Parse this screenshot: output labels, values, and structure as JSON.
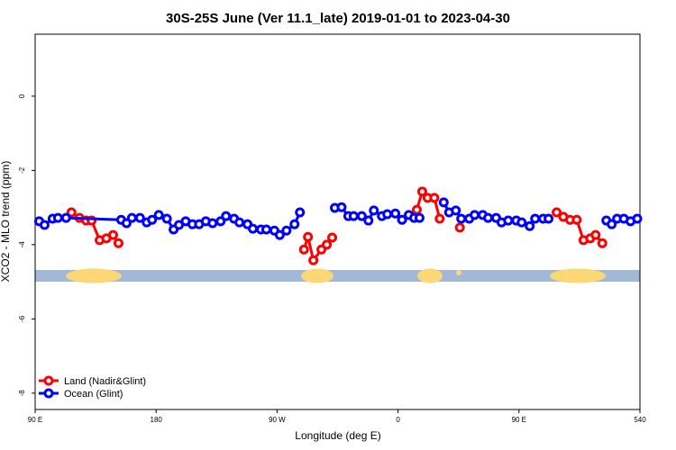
{
  "chart_data": {
    "type": "line",
    "title": "30S-25S June (Ver 11.1_late)   2019-01-01 to 2023-04-30",
    "x_label": "Longitude (deg E)",
    "y_label": "XCO2 - MLO trend (ppm)",
    "xlim": [
      90,
      540
    ],
    "xticks": [
      {
        "value": 90,
        "label": "90 E"
      },
      180,
      {
        "value": 270,
        "label": "90 W"
      },
      {
        "value": 360,
        "label": "0"
      },
      {
        "value": 450,
        "label": "90 E"
      },
      540
    ],
    "ylim": [
      -8.44,
      1.67
    ],
    "yticks": [
      0,
      -2,
      -4,
      -6,
      -8
    ],
    "legend": "bottom-left",
    "series": [
      {
        "name": "Land (Nadir&Glint)",
        "color": "#ff0000",
        "x": [
          117,
          123,
          128,
          132,
          138,
          143,
          148,
          152,
          null,
          290,
          293,
          297,
          303,
          307,
          311,
          null,
          374,
          378,
          382,
          387,
          391,
          null,
          406,
          null,
          478,
          483,
          488,
          493,
          498,
          503,
          507,
          512
        ],
        "values": [
          -3.13,
          -3.28,
          -3.35,
          -3.35,
          -3.88,
          -3.83,
          -3.74,
          -3.96,
          null,
          -4.13,
          -3.79,
          -4.42,
          -4.13,
          -4.0,
          -3.81,
          null,
          -3.06,
          -2.57,
          -2.74,
          -2.74,
          -3.3,
          null,
          -3.54,
          null,
          -3.13,
          -3.25,
          -3.33,
          -3.33,
          -3.88,
          -3.83,
          -3.74,
          -3.96
        ]
      },
      {
        "name": "Ocean (Glint)",
        "color": "#0000ff",
        "x": [
          93,
          97,
          103,
          107,
          113,
          154,
          158,
          162,
          168,
          173,
          177,
          182,
          188,
          193,
          197,
          202,
          207,
          212,
          217,
          222,
          228,
          232,
          238,
          242,
          248,
          252,
          258,
          262,
          268,
          272,
          277,
          283,
          287,
          null,
          313,
          318,
          323,
          327,
          333,
          338,
          342,
          348,
          352,
          358,
          363,
          368,
          372,
          376,
          null,
          394,
          398,
          403,
          407,
          413,
          417,
          423,
          427,
          433,
          437,
          442,
          448,
          452,
          458,
          462,
          468,
          472,
          null,
          515,
          519,
          523,
          528,
          533,
          538
        ],
        "values": [
          -3.37,
          -3.47,
          -3.3,
          -3.28,
          -3.28,
          -3.33,
          -3.42,
          -3.28,
          -3.28,
          -3.4,
          -3.33,
          -3.2,
          -3.3,
          -3.59,
          -3.47,
          -3.37,
          -3.45,
          -3.45,
          -3.37,
          -3.42,
          -3.37,
          -3.23,
          -3.3,
          -3.4,
          -3.45,
          -3.57,
          -3.59,
          -3.59,
          -3.62,
          -3.74,
          -3.62,
          -3.45,
          -3.13,
          null,
          -3.01,
          -2.99,
          -3.23,
          -3.23,
          -3.23,
          -3.35,
          -3.08,
          -3.23,
          -3.18,
          -3.16,
          -3.33,
          -3.2,
          -3.28,
          -3.28,
          null,
          -2.86,
          -3.13,
          -3.08,
          -3.3,
          -3.3,
          -3.2,
          -3.2,
          -3.28,
          -3.28,
          -3.4,
          -3.35,
          -3.35,
          -3.4,
          -3.5,
          -3.3,
          -3.3,
          -3.3,
          null,
          -3.35,
          -3.45,
          -3.3,
          -3.3,
          -3.37,
          -3.3
        ]
      }
    ]
  }
}
